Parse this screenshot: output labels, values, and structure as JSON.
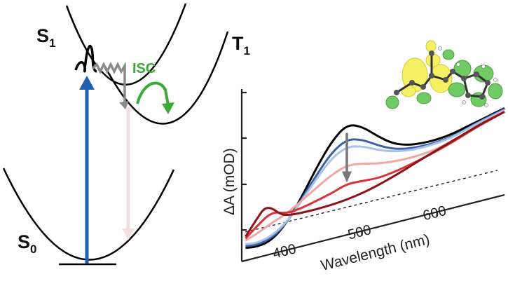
{
  "diagram": {
    "states": {
      "s1": {
        "base": "S",
        "sub": "1"
      },
      "t1": {
        "base": "T",
        "sub": "1"
      },
      "s0": {
        "base": "S",
        "sub": "0"
      }
    },
    "isc_label": "ISC",
    "colors": {
      "excitation": "#1f5fb0",
      "emission": "#f2dfe2",
      "isc": "#3aaa35",
      "relaxation": "#8a8a8a"
    }
  },
  "chart_data": {
    "type": "line",
    "xlabel": "Wavelength (nm)",
    "ylabel": "ΔA (mOD)",
    "x_ticks": [
      400,
      500,
      600
    ],
    "xlim": [
      340,
      690
    ],
    "probe_marker_nm": 480,
    "series": [
      {
        "color": "#000000",
        "x": [
          345,
          360,
          380,
          400,
          420,
          440,
          460,
          480,
          500,
          520,
          540,
          560,
          580,
          600,
          620,
          640,
          660,
          690
        ],
        "y": [
          -0.45,
          -0.5,
          -0.42,
          -0.05,
          0.55,
          1.25,
          1.85,
          2.2,
          2.05,
          1.7,
          1.4,
          1.25,
          1.2,
          1.2,
          1.25,
          1.35,
          1.45,
          1.6
        ]
      },
      {
        "color": "#3d5fa8",
        "x": [
          345,
          360,
          380,
          400,
          420,
          440,
          460,
          480,
          500,
          520,
          540,
          560,
          580,
          600,
          620,
          640,
          660,
          690
        ],
        "y": [
          -0.4,
          -0.45,
          -0.36,
          -0.05,
          0.5,
          1.05,
          1.55,
          1.8,
          1.7,
          1.45,
          1.25,
          1.15,
          1.12,
          1.13,
          1.18,
          1.3,
          1.42,
          1.58
        ]
      },
      {
        "color": "#a9c3e6",
        "x": [
          345,
          360,
          380,
          400,
          420,
          440,
          460,
          480,
          500,
          520,
          540,
          560,
          580,
          600,
          620,
          640,
          660,
          690
        ],
        "y": [
          -0.35,
          -0.4,
          -0.3,
          -0.03,
          0.45,
          0.95,
          1.4,
          1.6,
          1.52,
          1.32,
          1.18,
          1.1,
          1.08,
          1.1,
          1.16,
          1.28,
          1.4,
          1.55
        ]
      },
      {
        "color": "#f0a7a4",
        "x": [
          345,
          360,
          380,
          400,
          420,
          440,
          460,
          480,
          500,
          520,
          540,
          560,
          580,
          600,
          620,
          640,
          660,
          690
        ],
        "y": [
          -0.25,
          -0.15,
          0.05,
          0.2,
          0.45,
          0.7,
          0.95,
          1.1,
          1.05,
          0.95,
          0.9,
          0.88,
          0.9,
          0.95,
          1.05,
          1.2,
          1.35,
          1.52
        ]
      },
      {
        "color": "#d9343a",
        "x": [
          345,
          360,
          380,
          400,
          420,
          440,
          460,
          480,
          500,
          520,
          540,
          560,
          580,
          600,
          620,
          640,
          660,
          690
        ],
        "y": [
          -0.2,
          0.05,
          0.35,
          0.2,
          0.25,
          0.35,
          0.45,
          0.6,
          0.58,
          0.55,
          0.6,
          0.68,
          0.78,
          0.9,
          1.02,
          1.18,
          1.32,
          1.5
        ]
      },
      {
        "color": "#8b1418",
        "x": [
          345,
          360,
          370,
          380,
          390,
          400,
          420,
          440,
          460,
          480,
          500,
          520,
          540,
          560,
          580,
          600,
          620,
          640,
          660,
          690
        ],
        "y": [
          -0.15,
          0.25,
          0.5,
          0.45,
          0.25,
          0.15,
          0.12,
          0.12,
          0.14,
          0.18,
          0.25,
          0.35,
          0.48,
          0.62,
          0.78,
          0.92,
          1.06,
          1.2,
          1.34,
          1.5
        ]
      }
    ]
  }
}
